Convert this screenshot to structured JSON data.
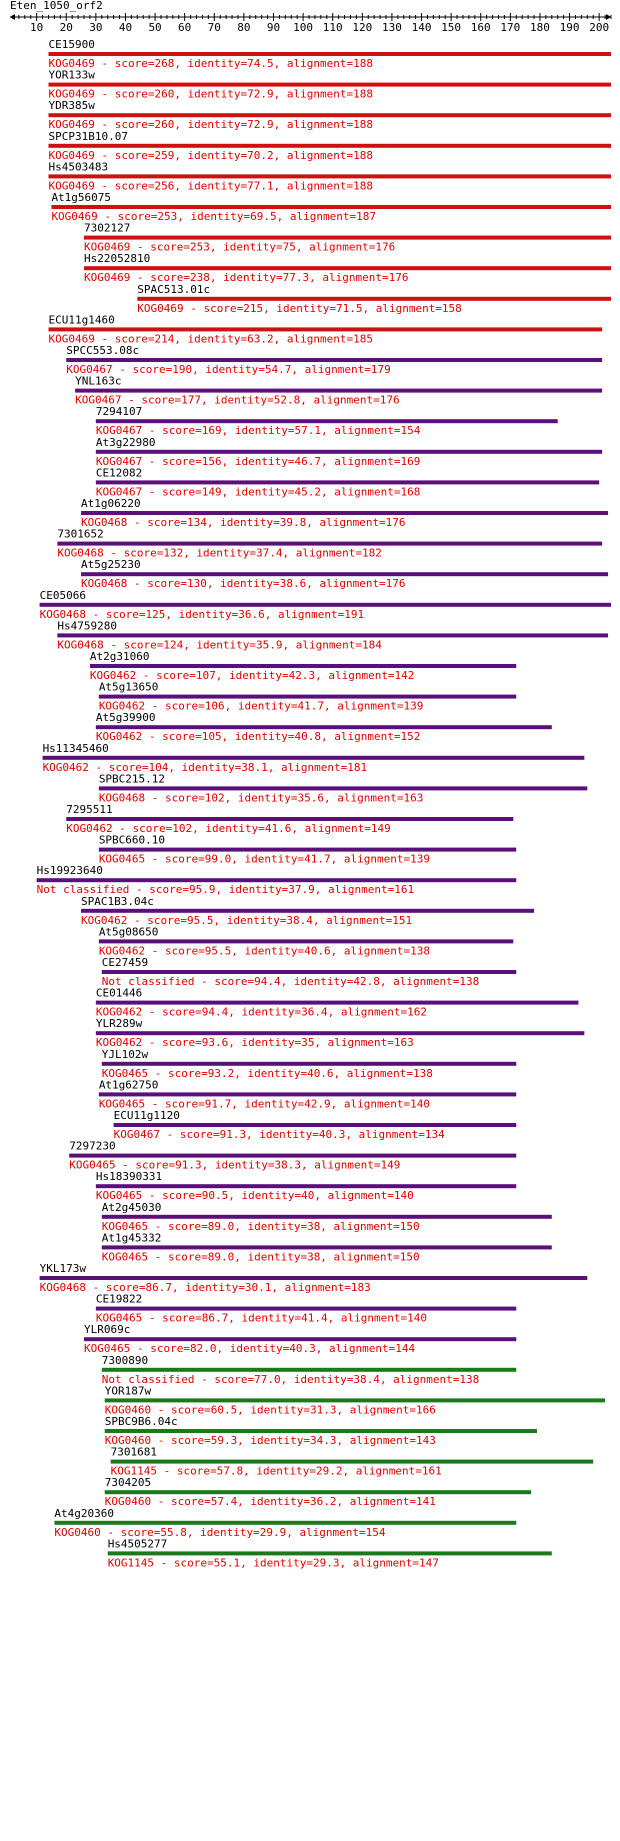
{
  "chart_data": {
    "type": "bar",
    "title": "Eten_1050_orf2",
    "x_axis": {
      "range": [
        1,
        204
      ],
      "ticks": [
        10,
        20,
        30,
        40,
        50,
        60,
        70,
        80,
        90,
        100,
        110,
        120,
        130,
        140,
        150,
        160,
        170,
        180,
        190,
        200
      ]
    },
    "colors": {
      "red": "#d01010",
      "purple": "#5a0f7a",
      "green": "#1a7a1a",
      "text_red": "#e00000",
      "axis": "#000000"
    },
    "hits": [
      {
        "name": "CE15900",
        "start": 14,
        "end": 204,
        "color": "red",
        "desc": "KOG0469 - score=268, identity=74.5, alignment=188"
      },
      {
        "name": "YOR133w",
        "start": 14,
        "end": 204,
        "color": "red",
        "desc": "KOG0469 - score=260, identity=72.9, alignment=188"
      },
      {
        "name": "YDR385w",
        "start": 14,
        "end": 204,
        "color": "red",
        "desc": "KOG0469 - score=260, identity=72.9, alignment=188"
      },
      {
        "name": "SPCP31B10.07",
        "start": 14,
        "end": 204,
        "color": "red",
        "desc": "KOG0469 - score=259, identity=70.2, alignment=188"
      },
      {
        "name": "Hs4503483",
        "start": 14,
        "end": 204,
        "color": "red",
        "desc": "KOG0469 - score=256, identity=77.1, alignment=188"
      },
      {
        "name": "At1g56075",
        "start": 15,
        "end": 204,
        "color": "red",
        "desc": "KOG0469 - score=253, identity=69.5, alignment=187"
      },
      {
        "name": "7302127",
        "start": 26,
        "end": 204,
        "color": "red",
        "desc": "KOG0469 - score=253, identity=75, alignment=176"
      },
      {
        "name": "Hs22052810",
        "start": 26,
        "end": 204,
        "color": "red",
        "desc": "KOG0469 - score=238, identity=77.3, alignment=176"
      },
      {
        "name": "SPAC513.01c",
        "start": 44,
        "end": 204,
        "color": "red",
        "desc": "KOG0469 - score=215, identity=71.5, alignment=158"
      },
      {
        "name": "ECU11g1460",
        "start": 14,
        "end": 201,
        "color": "red",
        "desc": "KOG0469 - score=214, identity=63.2, alignment=185"
      },
      {
        "name": "SPCC553.08c",
        "start": 20,
        "end": 201,
        "color": "purple",
        "desc": "KOG0467 - score=190, identity=54.7, alignment=179"
      },
      {
        "name": "YNL163c",
        "start": 23,
        "end": 201,
        "color": "purple",
        "desc": "KOG0467 - score=177, identity=52.8, alignment=176"
      },
      {
        "name": "7294107",
        "start": 30,
        "end": 186,
        "color": "purple",
        "desc": "KOG0467 - score=169, identity=57.1, alignment=154"
      },
      {
        "name": "At3g22980",
        "start": 30,
        "end": 201,
        "color": "purple",
        "desc": "KOG0467 - score=156, identity=46.7, alignment=169"
      },
      {
        "name": "CE12082",
        "start": 30,
        "end": 200,
        "color": "purple",
        "desc": "KOG0467 - score=149, identity=45.2, alignment=168"
      },
      {
        "name": "At1g06220",
        "start": 25,
        "end": 203,
        "color": "purple",
        "desc": "KOG0468 - score=134, identity=39.8, alignment=176"
      },
      {
        "name": "7301652",
        "start": 17,
        "end": 201,
        "color": "purple",
        "desc": "KOG0468 - score=132, identity=37.4, alignment=182"
      },
      {
        "name": "At5g25230",
        "start": 25,
        "end": 203,
        "color": "purple",
        "desc": "KOG0468 - score=130, identity=38.6, alignment=176"
      },
      {
        "name": "CE05066",
        "start": 11,
        "end": 204,
        "color": "purple",
        "desc": "KOG0468 - score=125, identity=36.6, alignment=191"
      },
      {
        "name": "Hs4759280",
        "start": 17,
        "end": 203,
        "color": "purple",
        "desc": "KOG0468 - score=124, identity=35.9, alignment=184"
      },
      {
        "name": "At2g31060",
        "start": 28,
        "end": 172,
        "color": "purple",
        "desc": "KOG0462 - score=107, identity=42.3, alignment=142"
      },
      {
        "name": "At5g13650",
        "start": 31,
        "end": 172,
        "color": "purple",
        "desc": "KOG0462 - score=106, identity=41.7, alignment=139"
      },
      {
        "name": "At5g39900",
        "start": 30,
        "end": 184,
        "color": "purple",
        "desc": "KOG0462 - score=105, identity=40.8, alignment=152"
      },
      {
        "name": "Hs11345460",
        "start": 12,
        "end": 195,
        "color": "purple",
        "desc": "KOG0462 - score=104, identity=38.1, alignment=181"
      },
      {
        "name": "SPBC215.12",
        "start": 31,
        "end": 196,
        "color": "purple",
        "desc": "KOG0468 - score=102, identity=35.6, alignment=163"
      },
      {
        "name": "7295511",
        "start": 20,
        "end": 171,
        "color": "purple",
        "desc": "KOG0462 - score=102, identity=41.6, alignment=149"
      },
      {
        "name": "SPBC660.10",
        "start": 31,
        "end": 172,
        "color": "purple",
        "desc": "KOG0465 - score=99.0, identity=41.7, alignment=139"
      },
      {
        "name": "Hs19923640",
        "start": 10,
        "end": 172,
        "color": "purple",
        "desc": "Not classified - score=95.9, identity=37.9, alignment=161"
      },
      {
        "name": "SPAC1B3.04c",
        "start": 25,
        "end": 178,
        "color": "purple",
        "desc": "KOG0462 - score=95.5, identity=38.4, alignment=151"
      },
      {
        "name": "At5g08650",
        "start": 31,
        "end": 171,
        "color": "purple",
        "desc": "KOG0462 - score=95.5, identity=40.6, alignment=138"
      },
      {
        "name": "CE27459",
        "start": 32,
        "end": 172,
        "color": "purple",
        "desc": "Not classified - score=94.4, identity=42.8, alignment=138"
      },
      {
        "name": "CE01446",
        "start": 30,
        "end": 193,
        "color": "purple",
        "desc": "KOG0462 - score=94.4, identity=36.4, alignment=162"
      },
      {
        "name": "YLR289w",
        "start": 30,
        "end": 195,
        "color": "purple",
        "desc": "KOG0462 - score=93.6, identity=35, alignment=163"
      },
      {
        "name": "YJL102w",
        "start": 32,
        "end": 172,
        "color": "purple",
        "desc": "KOG0465 - score=93.2, identity=40.6, alignment=138"
      },
      {
        "name": "At1g62750",
        "start": 31,
        "end": 172,
        "color": "purple",
        "desc": "KOG0465 - score=91.7, identity=42.9, alignment=140"
      },
      {
        "name": "ECU11g1120",
        "start": 36,
        "end": 172,
        "color": "purple",
        "desc": "KOG0467 - score=91.3, identity=40.3, alignment=134"
      },
      {
        "name": "7297230",
        "start": 21,
        "end": 172,
        "color": "purple",
        "desc": "KOG0465 - score=91.3, identity=38.3, alignment=149"
      },
      {
        "name": "Hs18390331",
        "start": 30,
        "end": 172,
        "color": "purple",
        "desc": "KOG0465 - score=90.5, identity=40, alignment=140"
      },
      {
        "name": "At2g45030",
        "start": 32,
        "end": 184,
        "color": "purple",
        "desc": "KOG0465 - score=89.0, identity=38, alignment=150"
      },
      {
        "name": "At1g45332",
        "start": 32,
        "end": 184,
        "color": "purple",
        "desc": "KOG0465 - score=89.0, identity=38, alignment=150"
      },
      {
        "name": "YKL173w",
        "start": 11,
        "end": 196,
        "color": "purple",
        "desc": "KOG0468 - score=86.7, identity=30.1, alignment=183"
      },
      {
        "name": "CE19822",
        "start": 30,
        "end": 172,
        "color": "purple",
        "desc": "KOG0465 - score=86.7, identity=41.4, alignment=140"
      },
      {
        "name": "YLR069c",
        "start": 26,
        "end": 172,
        "color": "purple",
        "desc": "KOG0465 - score=82.0, identity=40.3, alignment=144"
      },
      {
        "name": "7300890",
        "start": 32,
        "end": 172,
        "color": "green",
        "desc": "Not classified - score=77.0, identity=38.4, alignment=138"
      },
      {
        "name": "YOR187w",
        "start": 33,
        "end": 202,
        "color": "green",
        "desc": "KOG0460 - score=60.5, identity=31.3, alignment=166"
      },
      {
        "name": "SPBC9B6.04c",
        "start": 33,
        "end": 179,
        "color": "green",
        "desc": "KOG0460 - score=59.3, identity=34.3, alignment=143"
      },
      {
        "name": "7301681",
        "start": 35,
        "end": 198,
        "color": "green",
        "desc": "KOG1145 - score=57.8, identity=29.2, alignment=161"
      },
      {
        "name": "7304205",
        "start": 33,
        "end": 177,
        "color": "green",
        "desc": "KOG0460 - score=57.4, identity=36.2, alignment=141"
      },
      {
        "name": "At4g20360",
        "start": 16,
        "end": 172,
        "color": "green",
        "desc": "KOG0460 - score=55.8, identity=29.9, alignment=154"
      },
      {
        "name": "Hs4505277",
        "start": 34,
        "end": 184,
        "color": "green",
        "desc": "KOG1145 - score=55.1, identity=29.3, alignment=147"
      }
    ]
  }
}
